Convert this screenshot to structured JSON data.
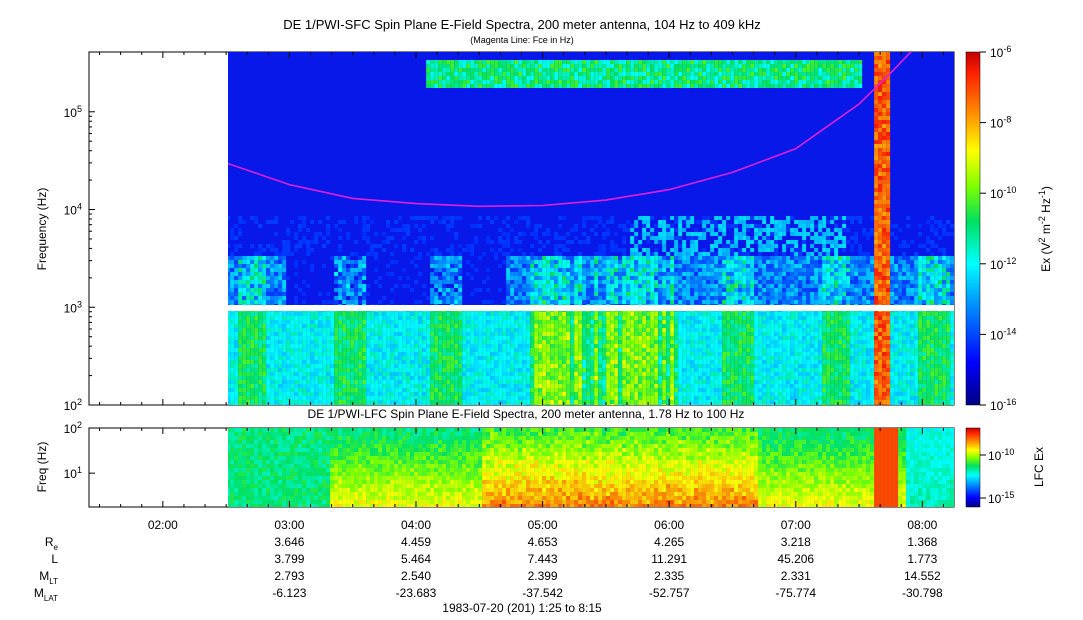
{
  "header": {
    "title": "DE 1/PWI-SFC  Spin Plane E-Field Spectra, 200 meter antenna, 104 Hz to 409 kHz",
    "subtitle": "(Magenta Line: Fce in Hz)"
  },
  "chart_data": [
    {
      "type": "heatmap",
      "title": "DE 1/PWI-SFC  Spin Plane E-Field Spectra, 200 meter antenna, 104 Hz to 409 kHz",
      "subtitle": "(Magenta Line: Fce in Hz)",
      "ylabel": "Frequency (Hz)",
      "y_scale": "log",
      "ylim": [
        100,
        409000
      ],
      "y_ticks": [
        "10^2",
        "10^3",
        "10^4",
        "10^5"
      ],
      "xlim": [
        "01:25",
        "08:15"
      ],
      "data_start": "02:30",
      "colorbar": {
        "label_parts": [
          "Ex (V",
          "2",
          " m",
          "-2",
          " Hz",
          "-1",
          ")"
        ],
        "scale": "log",
        "range": [
          1e-16,
          1e-06
        ],
        "ticks": [
          "10^-6",
          "10^-8",
          "10^-10",
          "10^-12",
          "10^-14",
          "10^-16"
        ]
      },
      "line_series": {
        "color": "#e020e0",
        "points": [
          {
            "t": "02:30",
            "f": 30000
          },
          {
            "t": "03:00",
            "f": 18000
          },
          {
            "t": "03:30",
            "f": 13000
          },
          {
            "t": "04:00",
            "f": 11500
          },
          {
            "t": "04:30",
            "f": 10800
          },
          {
            "t": "05:00",
            "f": 11000
          },
          {
            "t": "05:30",
            "f": 12500
          },
          {
            "t": "06:00",
            "f": 16000
          },
          {
            "t": "06:30",
            "f": 24000
          },
          {
            "t": "07:00",
            "f": 42000
          },
          {
            "t": "07:30",
            "f": 120000
          },
          {
            "t": "07:45",
            "f": 250000
          },
          {
            "t": "07:55",
            "f": 420000
          }
        ]
      }
    },
    {
      "type": "heatmap",
      "title": "DE 1/PWI-LFC  Spin Plane E-Field Spectra, 200 meter antenna, 1.78 Hz to 100 Hz",
      "ylabel": "Freq (Hz)",
      "y_scale": "log",
      "ylim": [
        1.78,
        100
      ],
      "y_ticks": [
        "10^1",
        "10^2"
      ],
      "xlim": [
        "01:25",
        "08:15"
      ],
      "data_start": "02:30",
      "colorbar": {
        "label": "LFC Ex",
        "scale": "log",
        "ticks": [
          "10^-10",
          "10^-15"
        ]
      }
    }
  ],
  "x_axis": {
    "time_labels": [
      "02:00",
      "03:00",
      "04:00",
      "05:00",
      "06:00",
      "07:00",
      "08:00"
    ],
    "ephemeris": {
      "rows": [
        {
          "name_main": "R",
          "name_sub": "e",
          "values": [
            "3.646",
            "4.459",
            "4.653",
            "4.265",
            "3.218",
            "1.368"
          ]
        },
        {
          "name_main": "L",
          "name_sub": "",
          "values": [
            "3.799",
            "5.464",
            "7.443",
            "11.291",
            "45.206",
            "1.773"
          ]
        },
        {
          "name_main": "M",
          "name_sub": "LT",
          "values": [
            "2.793",
            "2.540",
            "2.399",
            "2.335",
            "2.331",
            "14.552"
          ]
        },
        {
          "name_main": "M",
          "name_sub": "LAT",
          "values": [
            "-6.123",
            "-23.683",
            "-37.542",
            "-52.757",
            "-75.774",
            "-30.798"
          ]
        }
      ]
    },
    "footer": "1983-07-20 (201) 1:25 to 8:15"
  }
}
